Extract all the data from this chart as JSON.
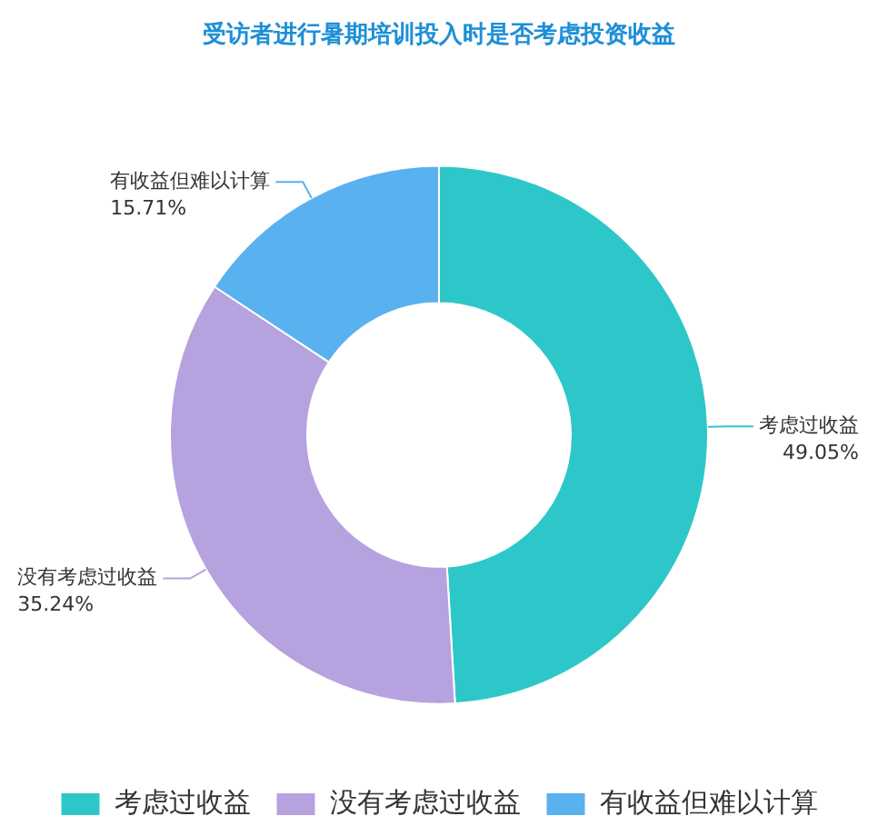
{
  "chart_data": {
    "type": "donut",
    "title": "受访者进行暑期培训投入时是否考虑投资收益",
    "categories": [
      "考虑过收益",
      "没有考虑过收益",
      "有收益但难以计算"
    ],
    "values": [
      49.05,
      35.24,
      15.71
    ],
    "colors": [
      "#2ec7c9",
      "#b6a2de",
      "#5ab1ef"
    ],
    "value_labels": [
      "49.05%",
      "35.24%",
      "15.71%"
    ],
    "legend": "bottom"
  }
}
